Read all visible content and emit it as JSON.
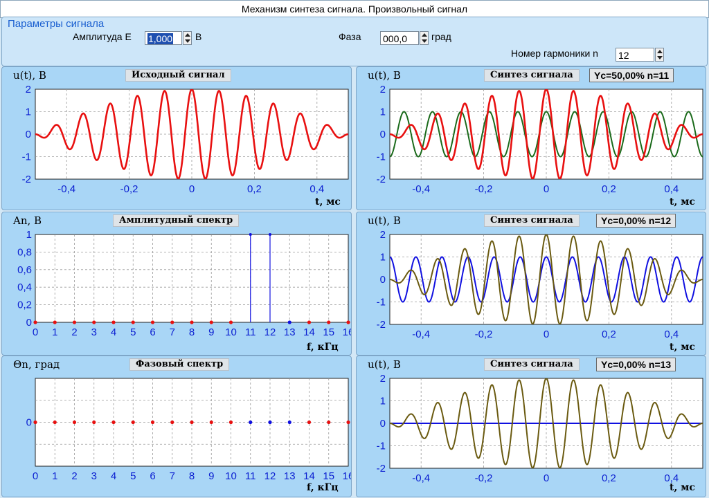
{
  "window": {
    "title": "Механизм синтеза сигнала. Произвольный сигнал"
  },
  "params": {
    "title": "Параметры сигнала",
    "amplitude_label": "Амплитуда  E",
    "amplitude_value": "1,000",
    "amplitude_unit": "В",
    "phase_label": "Фаза",
    "phase_value": "000,0",
    "phase_unit": "град",
    "harmonic_label": "Номер гармоники  n",
    "harmonic_value": "12"
  },
  "colors": {
    "panel_bg": "#a9d6f6",
    "red": "#e81010",
    "green": "#1a6a1a",
    "blue": "#1010e0",
    "olive": "#6a5a10",
    "axis_text": "#0b1fd1"
  },
  "panels": {
    "source": {
      "ylabel": "u(t), В",
      "title": "Исходный сигнал",
      "xlabel": "t, мс"
    },
    "amp": {
      "ylabel": "An, В",
      "title": "Амплитудный спектр",
      "xlabel": "f, кГц"
    },
    "phase": {
      "ylabel": "Θn, град",
      "title": "Фазовый спектр",
      "xlabel": "f, кГц"
    },
    "syn1": {
      "ylabel": "u(t), В",
      "title": "Синтез сигнала",
      "badge": "Yc=50,00%   n=11",
      "xlabel": "t, мс"
    },
    "syn2": {
      "ylabel": "u(t), В",
      "title": "Синтез сигнала",
      "badge": "Yc=0,00%   n=12",
      "xlabel": "t, мс"
    },
    "syn3": {
      "ylabel": "u(t), В",
      "title": "Синтез сигнала",
      "badge": "Yc=0,00%   n=13",
      "xlabel": "t, мс"
    }
  },
  "chart_data": [
    {
      "id": "source",
      "type": "line",
      "title": "Исходный сигнал",
      "xlabel": "t, мс",
      "ylabel": "u(t), В",
      "xlim": [
        -0.5,
        0.5
      ],
      "ylim": [
        -2,
        2
      ],
      "grid": true,
      "x_ticks": [
        "-0,4",
        "-0,2",
        "0",
        "0,2",
        "0,4"
      ],
      "y_ticks": [
        "2",
        "1",
        "0",
        "-1",
        "-2"
      ],
      "series": [
        {
          "color": "#e81010",
          "formula": "cos(2π·11·t)+cos(2π·12·t)",
          "components_khz": [
            11,
            12
          ],
          "amplitudes_v": [
            1,
            1
          ]
        }
      ]
    },
    {
      "id": "amp",
      "type": "bar",
      "title": "Амплитудный спектр",
      "xlabel": "f, кГц",
      "ylabel": "An, В",
      "xlim": [
        0,
        16
      ],
      "ylim": [
        0,
        1
      ],
      "grid": true,
      "x_ticks": [
        "0",
        "1",
        "2",
        "3",
        "4",
        "5",
        "6",
        "7",
        "8",
        "9",
        "10",
        "11",
        "12",
        "13",
        "14",
        "15",
        "16"
      ],
      "y_ticks": [
        "1",
        "0,8",
        "0,6",
        "0,4",
        "0,2",
        "0"
      ],
      "categories": [
        0,
        1,
        2,
        3,
        4,
        5,
        6,
        7,
        8,
        9,
        10,
        11,
        12,
        13,
        14,
        15,
        16
      ],
      "values": [
        0,
        0,
        0,
        0,
        0,
        0,
        0,
        0,
        0,
        0,
        0,
        1,
        1,
        0,
        0,
        0,
        0
      ],
      "point_colors": [
        "red",
        "red",
        "red",
        "red",
        "red",
        "red",
        "red",
        "red",
        "red",
        "red",
        "red",
        "blue",
        "blue",
        "blue",
        "red",
        "red",
        "red"
      ]
    },
    {
      "id": "phase",
      "type": "scatter",
      "title": "Фазовый спектр",
      "xlabel": "f, кГц",
      "ylabel": "Θn, град",
      "xlim": [
        0,
        16
      ],
      "grid": true,
      "x_ticks": [
        "0",
        "1",
        "2",
        "3",
        "4",
        "5",
        "6",
        "7",
        "8",
        "9",
        "10",
        "11",
        "12",
        "13",
        "14",
        "15",
        "16"
      ],
      "y_ticks": [
        "0"
      ],
      "categories": [
        0,
        1,
        2,
        3,
        4,
        5,
        6,
        7,
        8,
        9,
        10,
        11,
        12,
        13,
        14,
        15,
        16
      ],
      "values": [
        0,
        0,
        0,
        0,
        0,
        0,
        0,
        0,
        0,
        0,
        0,
        0,
        0,
        0,
        0,
        0,
        0
      ],
      "point_colors": [
        "red",
        "red",
        "red",
        "red",
        "red",
        "red",
        "red",
        "red",
        "red",
        "red",
        "red",
        "blue",
        "blue",
        "blue",
        "red",
        "red",
        "red"
      ]
    },
    {
      "id": "syn1",
      "type": "line",
      "title": "Синтез сигнала",
      "badge": "Yc=50,00%   n=11",
      "xlim": [
        -0.5,
        0.5
      ],
      "ylim": [
        -2,
        2
      ],
      "grid": true,
      "x_ticks": [
        "-0,4",
        "-0,2",
        "0",
        "0,2",
        "0,4"
      ],
      "y_ticks": [
        "2",
        "1",
        "0",
        "-1",
        "-2"
      ],
      "series": [
        {
          "color": "#1a6a1a",
          "description": "синтезированный сигнал",
          "components_khz": [
            11
          ],
          "amplitudes_v": [
            1
          ]
        },
        {
          "color": "#e81010",
          "description": "исходный сигнал",
          "components_khz": [
            11,
            12
          ],
          "amplitudes_v": [
            1,
            1
          ]
        }
      ]
    },
    {
      "id": "syn2",
      "type": "line",
      "title": "Синтез сигнала",
      "badge": "Yc=0,00%   n=12",
      "xlim": [
        -0.5,
        0.5
      ],
      "ylim": [
        -2,
        2
      ],
      "grid": true,
      "x_ticks": [
        "-0,4",
        "-0,2",
        "0",
        "0,2",
        "0,4"
      ],
      "y_ticks": [
        "2",
        "1",
        "0",
        "-1",
        "-2"
      ],
      "series": [
        {
          "color": "#1010e0",
          "description": "гармоника n",
          "components_khz": [
            12
          ],
          "amplitudes_v": [
            1
          ]
        },
        {
          "color": "#6a5a10",
          "description": "синтезированный сигнал",
          "components_khz": [
            11,
            12
          ],
          "amplitudes_v": [
            1,
            1
          ]
        }
      ]
    },
    {
      "id": "syn3",
      "type": "line",
      "title": "Синтез сигнала",
      "badge": "Yc=0,00%   n=13",
      "xlim": [
        -0.5,
        0.5
      ],
      "ylim": [
        -2,
        2
      ],
      "grid": true,
      "x_ticks": [
        "-0,4",
        "-0,2",
        "0",
        "0,2",
        "0,4"
      ],
      "y_ticks": [
        "2",
        "1",
        "0",
        "-1",
        "-2"
      ],
      "series": [
        {
          "color": "#1010e0",
          "description": "гармоника n",
          "components_khz": [
            13
          ],
          "amplitudes_v": [
            0
          ]
        },
        {
          "color": "#6a5a10",
          "description": "синтезированный сигнал",
          "components_khz": [
            11,
            12
          ],
          "amplitudes_v": [
            1,
            1
          ]
        }
      ]
    }
  ]
}
